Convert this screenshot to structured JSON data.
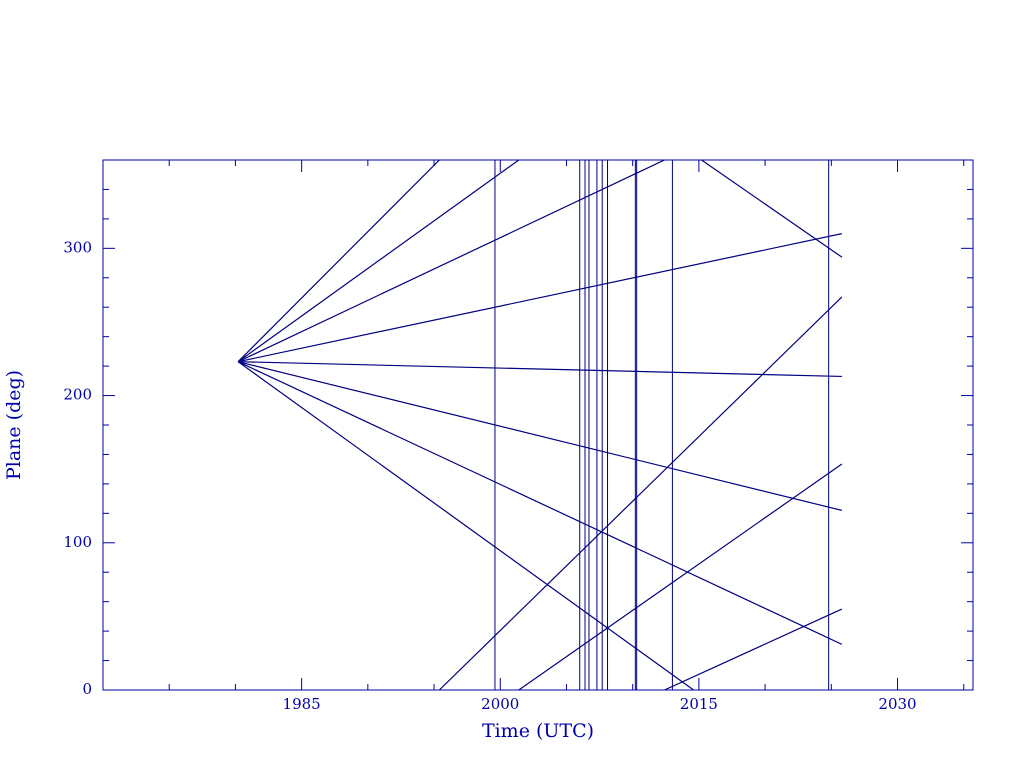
{
  "chart_data": {
    "type": "line",
    "x_label": "Time (UTC)",
    "y_label": "Plane (deg)",
    "xlim": [
      1970,
      2035.7
    ],
    "ylim": [
      0,
      360
    ],
    "xticks": [
      1985,
      2000,
      2015,
      2030
    ],
    "yticks": [
      0,
      100,
      200,
      300
    ],
    "xminorticks": [
      1975,
      1980,
      1990,
      1995,
      2005,
      2010,
      2020,
      2025,
      2035
    ],
    "yminorticks": [
      20,
      40,
      60,
      80,
      120,
      140,
      160,
      180,
      220,
      240,
      260,
      280,
      320,
      340
    ],
    "axis_color": "#0000a8",
    "line_color": "#000080",
    "series": [
      {
        "x": [
          1980.2,
          1995.4
        ],
        "values": [
          223,
          360
        ]
      },
      {
        "x": [
          1995.4,
          2025.8
        ],
        "values": [
          0,
          267
        ]
      },
      {
        "x": [
          1980.2,
          2001.4
        ],
        "values": [
          223,
          360
        ]
      },
      {
        "x": [
          2001.4,
          2025.8
        ],
        "values": [
          0,
          153.5
        ]
      },
      {
        "x": [
          1980.2,
          2012.4
        ],
        "values": [
          223,
          360
        ]
      },
      {
        "x": [
          2012.4,
          2025.8
        ],
        "values": [
          0,
          55
        ]
      },
      {
        "x": [
          1980.2,
          2025.8
        ],
        "values": [
          223,
          310
        ]
      },
      {
        "x": [
          1980.2,
          2025.8
        ],
        "values": [
          223,
          213
        ]
      },
      {
        "x": [
          1980.2,
          2025.8
        ],
        "values": [
          223,
          122
        ]
      },
      {
        "x": [
          1980.2,
          2025.8
        ],
        "values": [
          223,
          31
        ]
      },
      {
        "x": [
          1980.2,
          2014.6
        ],
        "values": [
          223,
          0
        ]
      },
      {
        "x": [
          2015.2,
          2025.8
        ],
        "values": [
          360,
          294
        ]
      }
    ],
    "vlines": [
      1999.6,
      2006.0,
      2006.4,
      2006.7,
      2007.3,
      2007.7,
      2008.1,
      2010.2,
      2010.3,
      2013.0,
      2024.8
    ]
  }
}
